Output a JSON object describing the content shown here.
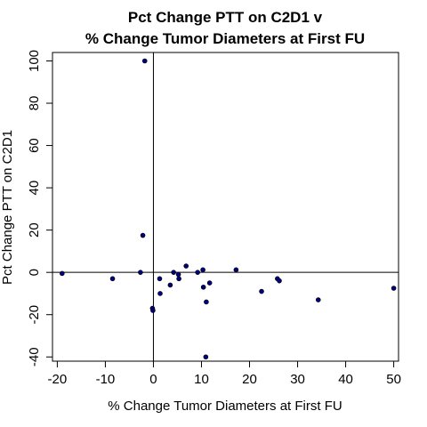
{
  "chart_data": {
    "type": "scatter",
    "title": "Pct Change PTT on C2D1 v",
    "subtitle": "% Change Tumor Diameters at First FU",
    "xlabel": "% Change Tumor Diameters at First FU",
    "ylabel": "Pct Change PTT on C2D1",
    "xlim": [
      -21,
      51
    ],
    "ylim": [
      -42,
      104
    ],
    "xticks": [
      -20,
      -10,
      0,
      10,
      20,
      30,
      40,
      50
    ],
    "yticks": [
      -40,
      -20,
      0,
      20,
      40,
      60,
      80,
      100
    ],
    "reference_lines": {
      "x": 0,
      "y": 0
    },
    "grid": false,
    "point_color": "#00007f",
    "points": [
      {
        "x": -19.0,
        "y": -0.5
      },
      {
        "x": -8.5,
        "y": -3.0
      },
      {
        "x": -2.7,
        "y": 0.0
      },
      {
        "x": -2.2,
        "y": 17.5
      },
      {
        "x": -1.8,
        "y": 100.0
      },
      {
        "x": -0.2,
        "y": -17.0
      },
      {
        "x": -0.1,
        "y": -18.0
      },
      {
        "x": 1.3,
        "y": -3.0
      },
      {
        "x": 1.4,
        "y": -10.0
      },
      {
        "x": 3.5,
        "y": -6.0
      },
      {
        "x": 4.2,
        "y": 0.0
      },
      {
        "x": 5.2,
        "y": -1.0
      },
      {
        "x": 5.3,
        "y": -3.0
      },
      {
        "x": 6.8,
        "y": 3.0
      },
      {
        "x": 9.2,
        "y": 0.0
      },
      {
        "x": 10.3,
        "y": 1.2
      },
      {
        "x": 10.4,
        "y": -7.0
      },
      {
        "x": 11.0,
        "y": -14.0
      },
      {
        "x": 11.7,
        "y": -5.0
      },
      {
        "x": 10.9,
        "y": -40.0
      },
      {
        "x": 17.2,
        "y": 1.2
      },
      {
        "x": 22.5,
        "y": -9.0
      },
      {
        "x": 25.8,
        "y": -3.0
      },
      {
        "x": 26.2,
        "y": -4.0
      },
      {
        "x": 34.3,
        "y": -13.0
      },
      {
        "x": 50.0,
        "y": -7.5
      }
    ]
  }
}
